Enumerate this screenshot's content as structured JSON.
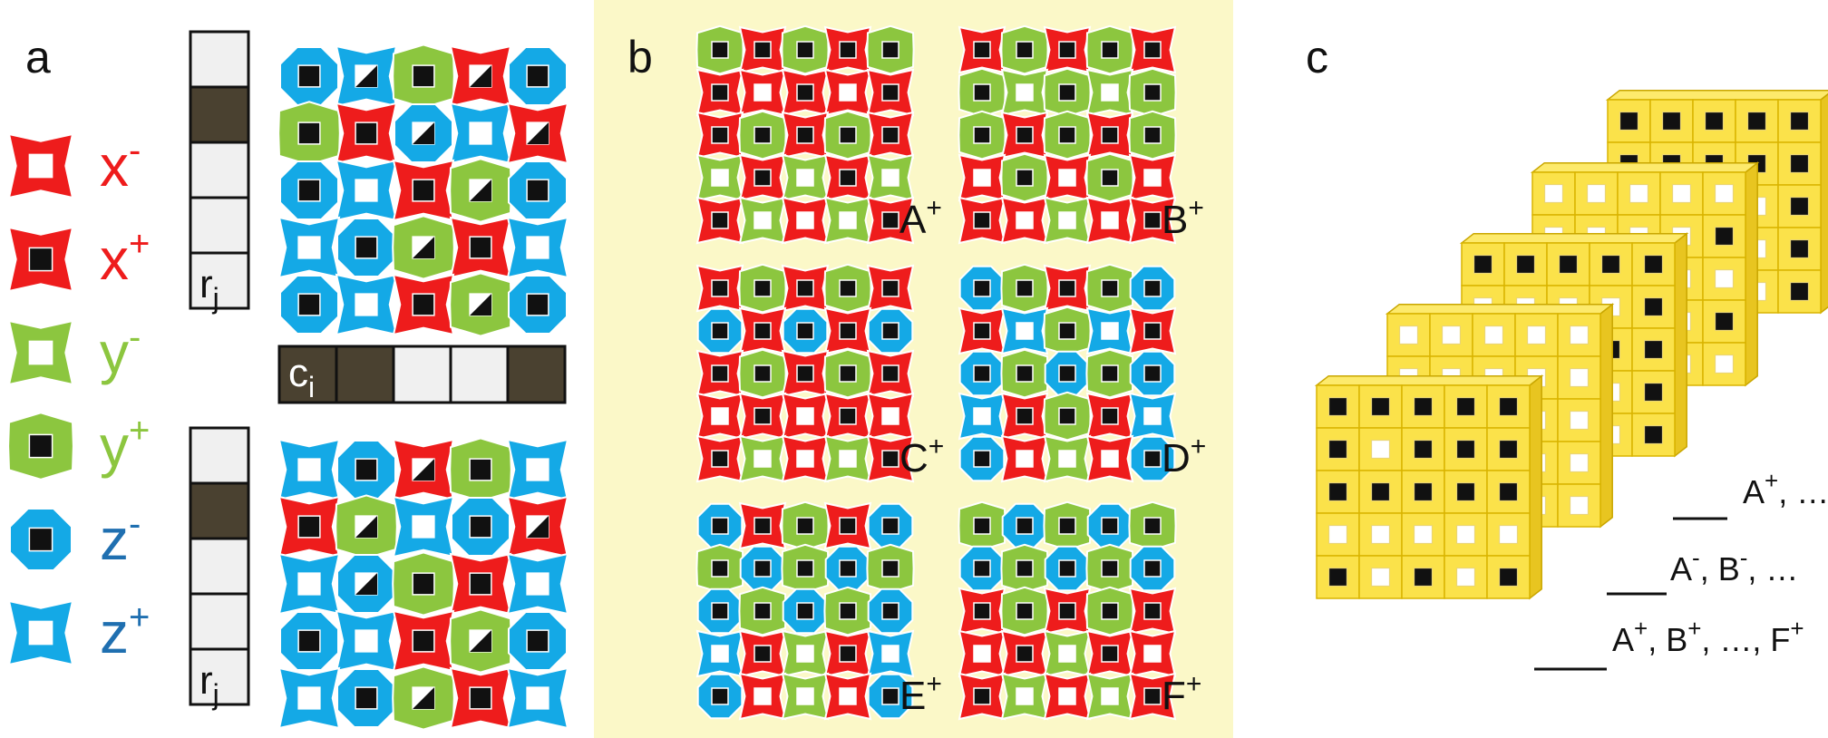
{
  "colors": {
    "red": "#ee1c1c",
    "green": "#8cc63f",
    "blue": "#14a9e6",
    "yellow_panel": "#fbf8c8",
    "dark_cell": "#4a4130",
    "light_cell": "#f0f0f0",
    "cube_face": "#fbe24a",
    "cube_side": "#e8c520",
    "cube_top": "#fdea6c",
    "label_blue": "#1f6fb0"
  },
  "panel_a": {
    "label": "a",
    "legend": [
      {
        "id": "x-minus",
        "letter": "x",
        "sup": "-",
        "color": "red",
        "kind": "concave",
        "center": "white"
      },
      {
        "id": "x-plus",
        "letter": "x",
        "sup": "+",
        "color": "red",
        "kind": "concave",
        "center": "black"
      },
      {
        "id": "y-minus",
        "letter": "y",
        "sup": "-",
        "color": "green",
        "kind": "concave",
        "center": "white"
      },
      {
        "id": "y-plus",
        "letter": "y",
        "sup": "+",
        "color": "green",
        "kind": "convex",
        "center": "black"
      },
      {
        "id": "z-minus",
        "letter": "z",
        "sup": "-",
        "color": "blue",
        "kind": "octagon",
        "center": "black"
      },
      {
        "id": "z-plus",
        "letter": "z",
        "sup": "+",
        "color": "blue",
        "kind": "concave",
        "center": "white"
      }
    ],
    "row_bar_label": "r",
    "row_bar_sub": "j",
    "col_bar_label": "c",
    "col_bar_sub": "i",
    "row_bar_top": [
      0,
      1,
      0,
      0,
      0
    ],
    "row_bar_bottom": [
      0,
      1,
      0,
      0,
      0
    ],
    "col_bar": [
      1,
      1,
      0,
      0,
      1
    ]
  },
  "panel_b": {
    "label": "b",
    "patterns": [
      {
        "label": "A",
        "sup": "+"
      },
      {
        "label": "B",
        "sup": "+"
      },
      {
        "label": "C",
        "sup": "+"
      },
      {
        "label": "D",
        "sup": "+"
      },
      {
        "label": "E",
        "sup": "+"
      },
      {
        "label": "F",
        "sup": "+"
      }
    ]
  },
  "panel_c": {
    "label": "c",
    "annotations": [
      {
        "text": "A",
        "sup": "+",
        "rest": ", …"
      },
      {
        "text": "A",
        "sup": "-",
        "rest": ", B",
        "sup2": "-",
        "rest2": ", …"
      },
      {
        "text": "A",
        "sup": "+",
        "rest": ", B",
        "sup2": "+",
        "rest2": ", …, F",
        "sup3": "+"
      }
    ]
  }
}
